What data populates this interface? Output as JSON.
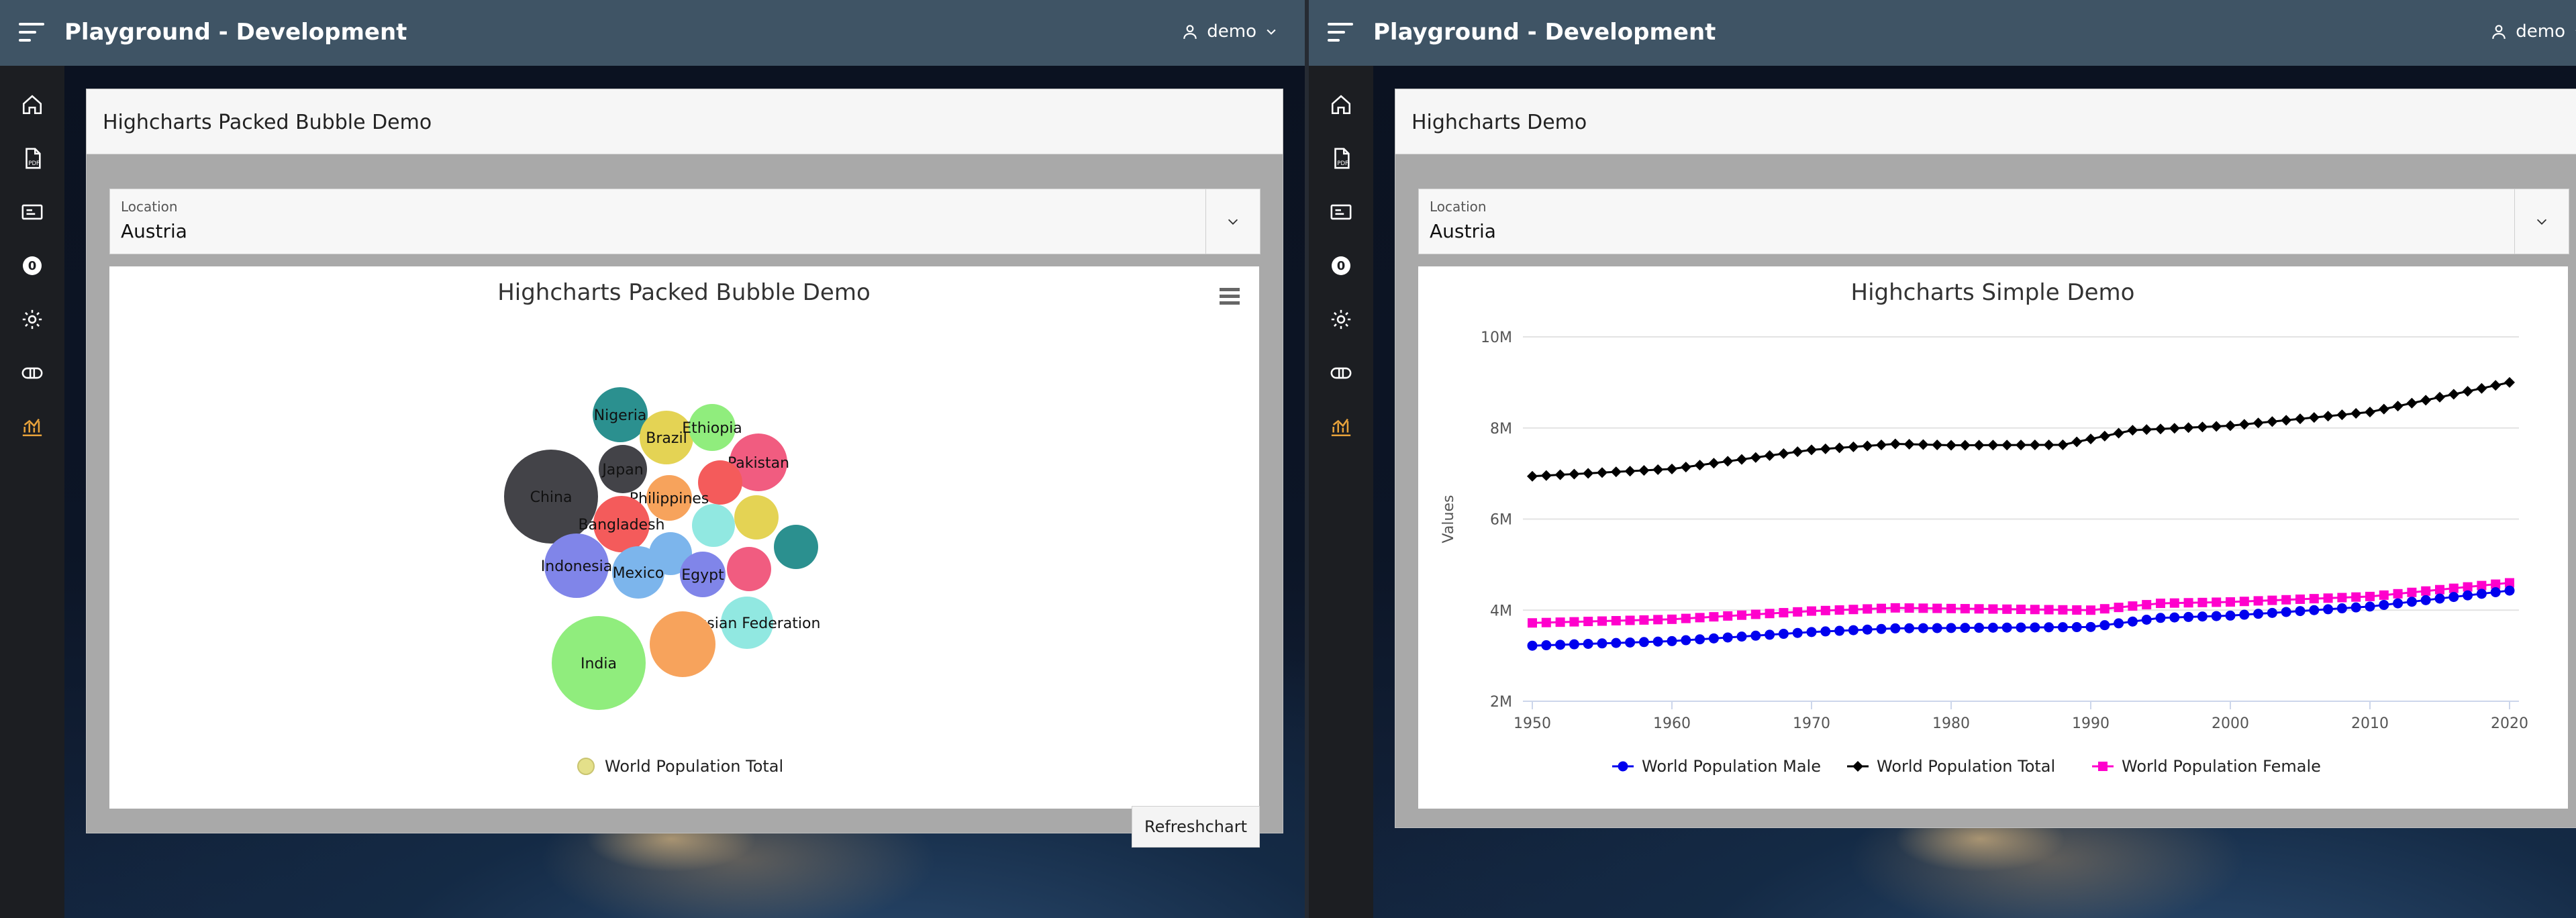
{
  "colors": {
    "header": "#3f5465",
    "sidenav": "#1c1e22",
    "active_nav": "#e8a33b"
  },
  "left": {
    "app_title": "Playground - Development",
    "user": "demo",
    "nav_icons": [
      "home-icon",
      "pdf-icon",
      "id-card-icon",
      "zero-badge-icon",
      "gear-icon",
      "ticket-icon",
      "chart-icon"
    ],
    "badge_text": "0",
    "region_title": "Highcharts Packed Bubble Demo",
    "location_label": "Location",
    "location_value": "Austria",
    "refresh_label": "Refreshchart"
  },
  "right": {
    "app_title": "Playground - Development",
    "user": "demo",
    "badge_text": "0",
    "region_title": "Highcharts Demo",
    "location_label": "Location",
    "location_value": "Austria"
  },
  "chart_data": [
    {
      "type": "bubble",
      "title": "Highcharts Packed Bubble Demo",
      "series": [
        {
          "name": "World Population Total"
        }
      ],
      "bubbles": [
        {
          "label": "Nigeria",
          "color": "#2b908f"
        },
        {
          "label": "Brazil",
          "color": "#e4d354"
        },
        {
          "label": "Ethiopia",
          "color": "#90ed7d"
        },
        {
          "label": "Japan",
          "color": "#434348"
        },
        {
          "label": "Pakistan",
          "color": "#f15c80"
        },
        {
          "label": "China",
          "color": "#434348"
        },
        {
          "label": "",
          "color": "#f45b5b"
        },
        {
          "label": "Philippines",
          "color": "#f7a35c"
        },
        {
          "label": "",
          "color": "#e4d354"
        },
        {
          "label": "Bangladesh",
          "color": "#f45b5b"
        },
        {
          "label": "",
          "color": "#91e8e1"
        },
        {
          "label": "",
          "color": "#2b908f"
        },
        {
          "label": "",
          "color": "#7cb5ec"
        },
        {
          "label": "Indonesia",
          "color": "#8085e9"
        },
        {
          "label": "Mexico",
          "color": "#7cb5ec"
        },
        {
          "label": "Egypt",
          "color": "#8085e9"
        },
        {
          "label": "",
          "color": "#f15c80"
        },
        {
          "label": "Russian Federation",
          "color": "#91e8e1"
        },
        {
          "label": "India",
          "color": "#90ed7d"
        },
        {
          "label": "",
          "color": "#f7a35c"
        }
      ],
      "legend": "bottom-center"
    },
    {
      "type": "line",
      "title": "Highcharts Simple Demo",
      "ylabel": "Values",
      "x": [
        1950,
        1951,
        1952,
        1953,
        1954,
        1955,
        1956,
        1957,
        1958,
        1959,
        1960,
        1961,
        1962,
        1963,
        1964,
        1965,
        1966,
        1967,
        1968,
        1969,
        1970,
        1971,
        1972,
        1973,
        1974,
        1975,
        1976,
        1977,
        1978,
        1979,
        1980,
        1981,
        1982,
        1983,
        1984,
        1985,
        1986,
        1987,
        1988,
        1989,
        1990,
        1991,
        1992,
        1993,
        1994,
        1995,
        1996,
        1997,
        1998,
        1999,
        2000,
        2001,
        2002,
        2003,
        2004,
        2005,
        2006,
        2007,
        2008,
        2009,
        2010,
        2011,
        2012,
        2013,
        2014,
        2015,
        2016,
        2017,
        2018,
        2019,
        2020
      ],
      "xticks": [
        1950,
        1960,
        1970,
        1980,
        1990,
        2000,
        2010,
        2020
      ],
      "yticks": [
        "2M",
        "4M",
        "6M",
        "8M",
        "10M"
      ],
      "ylim": [
        2000000,
        10000000
      ],
      "anchors": {
        "total": [
          [
            1950,
            6940000
          ],
          [
            1960,
            7100000
          ],
          [
            1970,
            7520000
          ],
          [
            1976,
            7650000
          ],
          [
            1980,
            7620000
          ],
          [
            1988,
            7630000
          ],
          [
            1993,
            7950000
          ],
          [
            2000,
            8050000
          ],
          [
            2010,
            8350000
          ],
          [
            2020,
            9000000
          ]
        ],
        "female": [
          [
            1950,
            3720000
          ],
          [
            1960,
            3800000
          ],
          [
            1970,
            3980000
          ],
          [
            1976,
            4050000
          ],
          [
            1990,
            4000000
          ],
          [
            1995,
            4150000
          ],
          [
            2000,
            4180000
          ],
          [
            2010,
            4300000
          ],
          [
            2020,
            4600000
          ]
        ],
        "male": [
          [
            1950,
            3220000
          ],
          [
            1960,
            3320000
          ],
          [
            1970,
            3520000
          ],
          [
            1976,
            3600000
          ],
          [
            1990,
            3630000
          ],
          [
            1995,
            3830000
          ],
          [
            2000,
            3880000
          ],
          [
            2010,
            4080000
          ],
          [
            2020,
            4430000
          ]
        ]
      },
      "series": [
        {
          "name": "World Population Male",
          "key": "male",
          "color": "#0000ee",
          "marker": "circle"
        },
        {
          "name": "World Population Total",
          "key": "total",
          "color": "#000000",
          "marker": "diamond"
        },
        {
          "name": "World Population Female",
          "key": "female",
          "color": "#ff00cc",
          "marker": "square"
        }
      ],
      "legend": "bottom-center",
      "grid": true
    }
  ]
}
